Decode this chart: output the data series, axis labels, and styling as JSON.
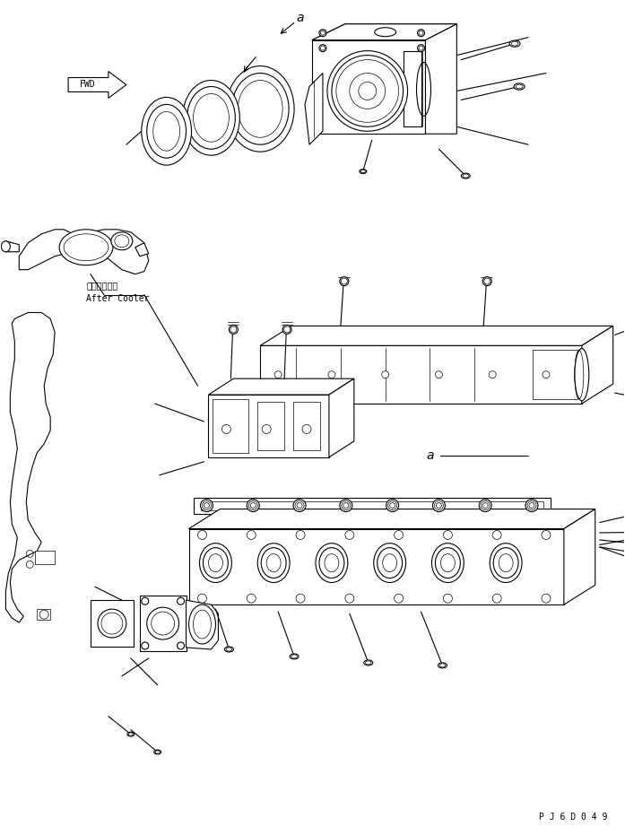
{
  "background_color": "#ffffff",
  "fig_width": 6.97,
  "fig_height": 9.31,
  "dpi": 100,
  "part_code": "P J 6 D 0 4 9",
  "fwd_label": "FWD",
  "after_cooler_jp": "アフタクーラ",
  "after_cooler_en": "After Cooler",
  "line_color": "#000000",
  "line_width": 0.8
}
